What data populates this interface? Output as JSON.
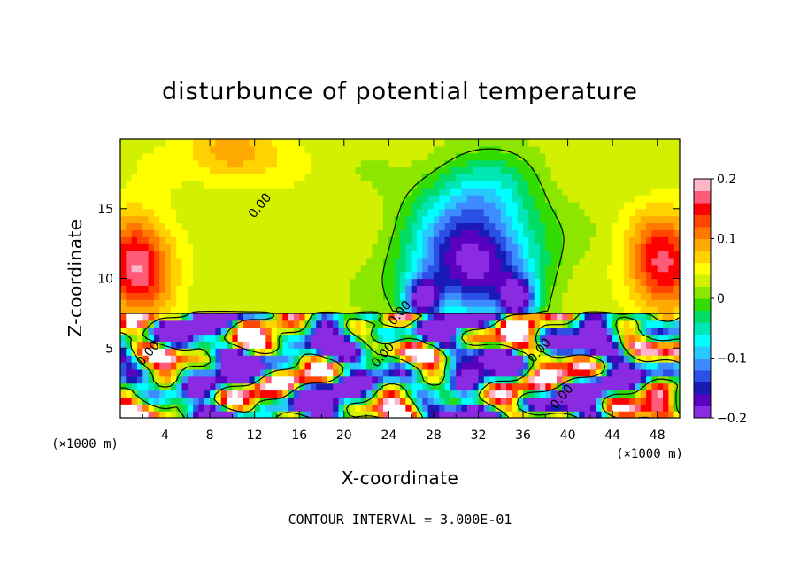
{
  "chart_data": {
    "type": "heatmap",
    "title": "disturbunce of potential temperature",
    "xlabel": "X-coordinate",
    "ylabel": "Z-coordinate",
    "x_unit": "(×1000 m)",
    "z_unit": "(×1000 m)",
    "xlim": [
      0,
      50
    ],
    "ylim": [
      0,
      20
    ],
    "x_ticks": [
      4,
      8,
      12,
      16,
      20,
      24,
      28,
      32,
      36,
      40,
      44,
      48
    ],
    "y_ticks": [
      5,
      10,
      15
    ],
    "contour_interval_note": "CONTOUR INTERVAL = 3.000E-01",
    "contour_labels": [
      {
        "text": "0.00",
        "x": 12.5,
        "z": 15.2
      },
      {
        "text": "0.00",
        "x": 25.0,
        "z": 7.5
      },
      {
        "text": "0.00",
        "x": 2.5,
        "z": 4.6
      },
      {
        "text": "0.00",
        "x": 23.5,
        "z": 4.5
      },
      {
        "text": "0.00",
        "x": 37.5,
        "z": 4.8
      },
      {
        "text": "0.00",
        "x": 39.5,
        "z": 1.5
      }
    ],
    "colorbar": {
      "range": [
        -0.2,
        0.2
      ],
      "tick_values": [
        0.2,
        0.1,
        0,
        -0.1,
        -0.2
      ],
      "tick_labels": [
        "0.2",
        "0.1",
        "0",
        "−0.1",
        "−0.2"
      ],
      "colors": [
        "#8a2be2",
        "#5a00c0",
        "#1a1ab4",
        "#2a50e6",
        "#3c8cff",
        "#28c8ff",
        "#00ffff",
        "#00e6b4",
        "#00dc64",
        "#32dc00",
        "#8ce600",
        "#d2f000",
        "#ffff00",
        "#ffd200",
        "#ffaa00",
        "#ff7800",
        "#ff4600",
        "#ff0000",
        "#ff5a78",
        "#ffb4c8"
      ]
    },
    "upper_layer_zmin": 7.5,
    "upper_features": [
      {
        "kind": "positive",
        "x": 1.5,
        "z": 11.0,
        "amplitude": 0.15,
        "sx": 3.0,
        "sz": 3.5
      },
      {
        "kind": "positive",
        "x": 48.5,
        "z": 11.0,
        "amplitude": 0.14,
        "sx": 3.0,
        "sz": 3.5
      },
      {
        "kind": "positive",
        "x": 10.0,
        "z": 19.0,
        "amplitude": 0.07,
        "sx": 4.0,
        "sz": 2.0
      },
      {
        "kind": "negative",
        "x": 31.5,
        "z": 11.0,
        "amplitude": -0.22,
        "sx": 5.5,
        "sz": 4.0
      },
      {
        "kind": "negative",
        "x": 32.0,
        "z": 16.0,
        "amplitude": -0.08,
        "sx": 5.0,
        "sz": 3.0
      },
      {
        "kind": "negative",
        "x": 27.0,
        "z": 8.5,
        "amplitude": -0.2,
        "sx": 1.5,
        "sz": 1.5
      },
      {
        "kind": "negative",
        "x": 35.5,
        "z": 8.5,
        "amplitude": -0.18,
        "sx": 1.5,
        "sz": 1.5
      }
    ]
  }
}
